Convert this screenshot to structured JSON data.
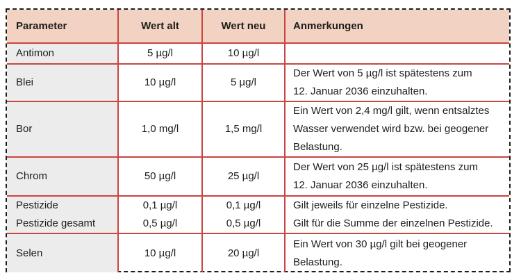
{
  "colors": {
    "red_line": "#c94540",
    "header_bg": "#f2d2c3",
    "col1_bg": "#ececec",
    "border_dark": "#1d1d1b",
    "text": "#1d1d1b"
  },
  "table": {
    "columns": [
      "Parameter",
      "Wert alt",
      "Wert neu",
      "Anmerkungen"
    ],
    "rows": [
      {
        "parameter": [
          "Antimon"
        ],
        "wert_alt": [
          "5 µg/l"
        ],
        "wert_neu": [
          "10 µg/l"
        ],
        "anmerkungen": []
      },
      {
        "parameter": [
          "Blei"
        ],
        "wert_alt": [
          "10 µg/l"
        ],
        "wert_neu": [
          "5 µg/l"
        ],
        "anmerkungen": [
          "Der Wert von 5 µg/l ist spätestens zum",
          "12. Januar 2036 einzuhalten."
        ]
      },
      {
        "parameter": [
          "Bor"
        ],
        "wert_alt": [
          "1,0 mg/l"
        ],
        "wert_neu": [
          "1,5 mg/l"
        ],
        "anmerkungen": [
          "Ein Wert von 2,4 mg/l gilt, wenn entsalztes",
          "Wasser verwendet wird bzw. bei geogener",
          "Belastung."
        ]
      },
      {
        "parameter": [
          "Chrom"
        ],
        "wert_alt": [
          "50 µg/l"
        ],
        "wert_neu": [
          "25 µg/l"
        ],
        "anmerkungen": [
          "Der Wert von 25 µg/l ist spätestens zum",
          "12. Januar 2036 einzuhalten."
        ]
      },
      {
        "parameter": [
          "Pestizide",
          "Pestizide gesamt"
        ],
        "wert_alt": [
          "0,1 µg/l",
          "0,5 µg/l"
        ],
        "wert_neu": [
          "0,1 µg/l",
          "0,5 µg/l"
        ],
        "anmerkungen": [
          "Gilt jeweils für einzelne Pestizide.",
          "Gilt für die Summe der einzelnen Pestizide."
        ]
      },
      {
        "parameter": [
          "Selen"
        ],
        "wert_alt": [
          "10 µg/l"
        ],
        "wert_neu": [
          "20 µg/l"
        ],
        "anmerkungen": [
          "Ein Wert von 30 µg/l gilt bei geogener",
          "Belastung."
        ]
      }
    ]
  }
}
